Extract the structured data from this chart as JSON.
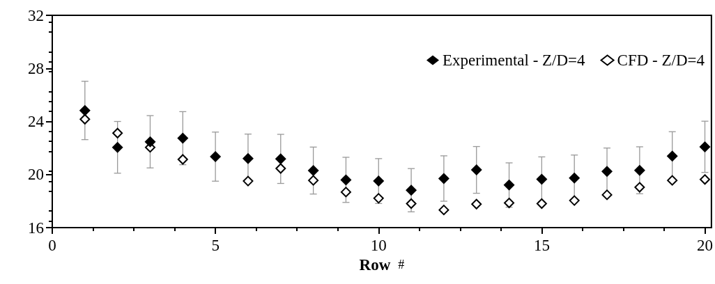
{
  "chart_data": {
    "type": "scatter",
    "xlabel": "Row #",
    "x": [
      1,
      2,
      3,
      4,
      5,
      6,
      7,
      8,
      9,
      10,
      11,
      12,
      13,
      14,
      15,
      16,
      17,
      18,
      19,
      20
    ],
    "series": [
      {
        "name": "Experimental - Z/D=4",
        "color": "#000000",
        "values": [
          24.83,
          22.05,
          22.47,
          22.74,
          21.35,
          21.21,
          21.18,
          20.3,
          19.6,
          19.51,
          18.82,
          19.7,
          20.35,
          19.21,
          19.65,
          19.74,
          20.23,
          20.32,
          21.39,
          22.09
        ],
        "errors": [
          2.2,
          1.95,
          1.97,
          2.0,
          1.85,
          1.84,
          1.85,
          1.77,
          1.7,
          1.69,
          1.63,
          1.71,
          1.76,
          1.67,
          1.68,
          1.73,
          1.77,
          1.77,
          1.84,
          1.93
        ]
      },
      {
        "name": "CFD - Z/D=4",
        "color": "#ffffff",
        "values": [
          24.17,
          23.12,
          22.05,
          21.14,
          null,
          19.51,
          20.46,
          19.56,
          18.68,
          18.21,
          17.81,
          17.33,
          17.77,
          17.86,
          17.81,
          18.04,
          18.47,
          19.04,
          19.56,
          19.63
        ]
      }
    ],
    "xlim": [
      0,
      20.2
    ],
    "xticks": [
      0,
      5,
      10,
      15,
      20
    ],
    "ylim": [
      16,
      32
    ],
    "yticks": [
      16,
      20,
      24,
      28,
      32
    ],
    "grid": false,
    "legend": "top right",
    "marker": "diamond"
  }
}
